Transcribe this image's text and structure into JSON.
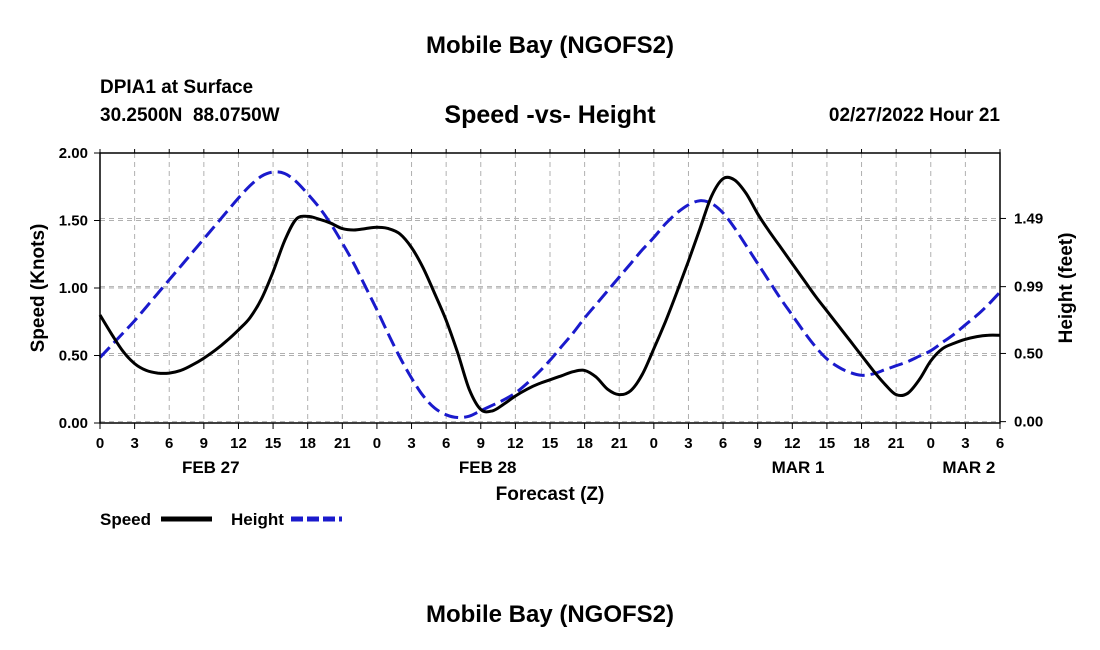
{
  "page_title": "Mobile Bay (NGOFS2)",
  "page_title_bottom": "Mobile Bay (NGOFS2)",
  "station": {
    "name": "DPIA1 at Surface",
    "coords": "30.2500N  88.0750W",
    "datetime": "02/27/2022 Hour 21"
  },
  "colors": {
    "speed": "#000000",
    "height": "#1a1acc",
    "grid": "#b0b0b0"
  },
  "chart_data": {
    "type": "line",
    "title": "Speed -vs- Height",
    "xlabel": "Forecast (Z)",
    "ylabel": "Speed (Knots)",
    "ylabel_right": "Height (feet)",
    "x_unit": "hours from 2022-02-27 00Z",
    "xlim": [
      0,
      78
    ],
    "ylim": [
      0,
      2
    ],
    "ylim_right": [
      -0.01,
      1.97
    ],
    "x_tick_values": [
      0,
      3,
      6,
      9,
      12,
      15,
      18,
      21,
      24,
      27,
      30,
      33,
      36,
      39,
      42,
      45,
      48,
      51,
      54,
      57,
      60,
      63,
      66,
      69,
      72,
      75,
      78
    ],
    "x_tick_labels": [
      "0",
      "3",
      "6",
      "9",
      "12",
      "15",
      "18",
      "21",
      "0",
      "3",
      "6",
      "9",
      "12",
      "15",
      "18",
      "21",
      "0",
      "3",
      "6",
      "9",
      "12",
      "15",
      "18",
      "21",
      "0",
      "3",
      "6"
    ],
    "date_labels": [
      {
        "x": 9.6,
        "label": "FEB 27"
      },
      {
        "x": 33.6,
        "label": "FEB 28"
      },
      {
        "x": 60.5,
        "label": "MAR 1"
      },
      {
        "x": 75.3,
        "label": "MAR 2"
      }
    ],
    "y_tick_labels": [
      "0.00",
      "0.50",
      "1.00",
      "1.50",
      "2.00"
    ],
    "y_tick_values": [
      0,
      0.5,
      1,
      1.5,
      2
    ],
    "y_right_tick_labels": [
      "0.00",
      "0.50",
      "0.99",
      "1.49"
    ],
    "y_right_tick_values": [
      0,
      0.5,
      0.99,
      1.49
    ],
    "grid": true,
    "legend_position": "bottom-left",
    "series": [
      {
        "name": "Speed",
        "axis": "left",
        "style": "solid",
        "x": [
          0,
          1,
          2,
          3,
          4,
          5,
          6,
          7,
          8,
          9,
          10,
          11,
          12,
          13,
          14,
          15,
          16,
          17,
          18,
          19,
          20,
          21,
          22,
          23,
          24,
          25,
          26,
          27,
          28,
          29,
          30,
          31,
          32,
          33,
          34,
          35,
          36,
          37,
          38,
          39,
          40,
          41,
          42,
          43,
          44,
          45,
          46,
          47,
          48,
          49,
          50,
          51,
          52,
          53,
          54,
          55,
          56,
          57,
          58,
          59,
          60,
          61,
          62,
          63,
          64,
          65,
          66,
          67,
          68,
          69,
          70,
          71,
          72,
          73,
          74,
          75,
          76,
          77,
          78
        ],
        "values": [
          0.8,
          0.66,
          0.53,
          0.44,
          0.39,
          0.37,
          0.37,
          0.39,
          0.43,
          0.48,
          0.54,
          0.61,
          0.69,
          0.78,
          0.92,
          1.12,
          1.35,
          1.51,
          1.53,
          1.51,
          1.48,
          1.44,
          1.43,
          1.44,
          1.45,
          1.44,
          1.4,
          1.3,
          1.15,
          0.96,
          0.76,
          0.52,
          0.25,
          0.1,
          0.09,
          0.14,
          0.2,
          0.25,
          0.29,
          0.32,
          0.35,
          0.38,
          0.39,
          0.34,
          0.25,
          0.21,
          0.24,
          0.36,
          0.55,
          0.75,
          0.97,
          1.2,
          1.44,
          1.68,
          1.81,
          1.8,
          1.7,
          1.55,
          1.42,
          1.3,
          1.18,
          1.06,
          0.94,
          0.83,
          0.72,
          0.61,
          0.5,
          0.39,
          0.29,
          0.21,
          0.22,
          0.32,
          0.46,
          0.55,
          0.59,
          0.62,
          0.64,
          0.65,
          0.65
        ]
      },
      {
        "name": "Height",
        "axis": "right",
        "style": "dashed",
        "x": [
          0,
          1,
          2,
          3,
          4,
          5,
          6,
          7,
          8,
          9,
          10,
          11,
          12,
          13,
          14,
          15,
          16,
          17,
          18,
          19,
          20,
          21,
          22,
          23,
          24,
          25,
          26,
          27,
          28,
          29,
          30,
          31,
          32,
          33,
          34,
          35,
          36,
          37,
          38,
          39,
          40,
          41,
          42,
          43,
          44,
          45,
          46,
          47,
          48,
          49,
          50,
          51,
          52,
          53,
          54,
          55,
          56,
          57,
          58,
          59,
          60,
          61,
          62,
          63,
          64,
          65,
          66,
          67,
          68,
          69,
          70,
          71,
          72,
          73,
          74,
          75,
          76,
          77,
          78
        ],
        "values": [
          0.47,
          0.56,
          0.65,
          0.74,
          0.84,
          0.94,
          1.04,
          1.14,
          1.24,
          1.34,
          1.44,
          1.54,
          1.64,
          1.73,
          1.8,
          1.83,
          1.82,
          1.76,
          1.67,
          1.57,
          1.45,
          1.31,
          1.16,
          0.99,
          0.82,
          0.64,
          0.47,
          0.32,
          0.19,
          0.1,
          0.05,
          0.03,
          0.04,
          0.08,
          0.12,
          0.16,
          0.21,
          0.28,
          0.36,
          0.45,
          0.55,
          0.65,
          0.76,
          0.86,
          0.96,
          1.06,
          1.16,
          1.26,
          1.35,
          1.45,
          1.53,
          1.59,
          1.62,
          1.6,
          1.53,
          1.42,
          1.29,
          1.16,
          1.03,
          0.9,
          0.78,
          0.66,
          0.55,
          0.46,
          0.4,
          0.36,
          0.34,
          0.35,
          0.38,
          0.41,
          0.44,
          0.48,
          0.52,
          0.58,
          0.64,
          0.71,
          0.78,
          0.86,
          0.95
        ]
      }
    ]
  }
}
